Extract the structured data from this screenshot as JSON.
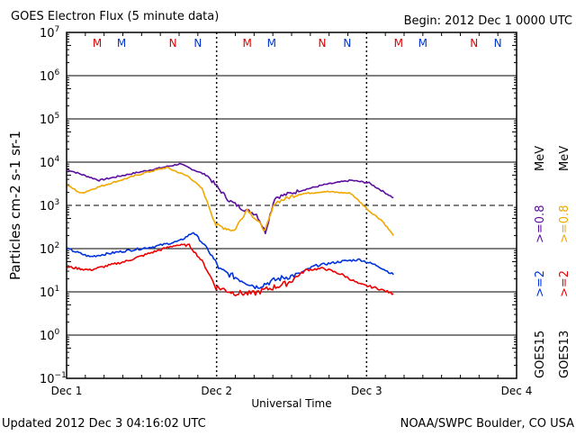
{
  "header": {
    "title": "GOES Electron Flux (5 minute data)",
    "begin": "Begin: 2012 Dec 1 0000 UTC"
  },
  "footer": {
    "updated": "Updated 2012 Dec  3 04:16:02 UTC",
    "credit": "NOAA/SWPC Boulder, CO USA"
  },
  "colors": {
    "goes15_08": "#5b0f9e",
    "goes13_08": "#f0a800",
    "goes15_2": "#0033dd",
    "goes13_2": "#ee0000",
    "marker_red": "#dd0000",
    "marker_blue": "#0033cc"
  },
  "legend": {
    "unit": "MeV",
    "goes15_08": ">=0.8",
    "goes13_08": ">=0.8",
    "goes15_2": ">=2",
    "goes13_2": ">=2",
    "goes15": "GOES15",
    "goes13": "GOES13"
  },
  "chart_data": {
    "type": "line",
    "title": "GOES Electron Flux (5 minute data)",
    "xlabel": "Universal Time",
    "ylabel": "Particles cm-2 s-1 sr-1",
    "x_unit": "hours since 2012 Dec 1 0000 UTC",
    "xlim": [
      0,
      72
    ],
    "ylim": [
      0.1,
      10000000
    ],
    "yscale": "log",
    "x_ticks": [
      {
        "v": 0,
        "label": "Dec 1"
      },
      {
        "v": 24,
        "label": "Dec 2"
      },
      {
        "v": 48,
        "label": "Dec 3"
      },
      {
        "v": 72,
        "label": "Dec 4"
      }
    ],
    "y_ticks": [
      {
        "exp": 7,
        "label": "10",
        "sup": "7"
      },
      {
        "exp": 6,
        "label": "10",
        "sup": "6"
      },
      {
        "exp": 5,
        "label": "10",
        "sup": "5"
      },
      {
        "exp": 4,
        "label": "10",
        "sup": "4"
      },
      {
        "exp": 3,
        "label": "10",
        "sup": "3"
      },
      {
        "exp": 2,
        "label": "10",
        "sup": "2"
      },
      {
        "exp": 1,
        "label": "10",
        "sup": "1"
      },
      {
        "exp": 0,
        "label": "10",
        "sup": "0"
      },
      {
        "exp": -1,
        "label": "10",
        "sup": "−1"
      }
    ],
    "threshold": 1000,
    "markers": [
      {
        "h": 4.9,
        "label": "M",
        "color": "red"
      },
      {
        "h": 8.8,
        "label": "M",
        "color": "blue"
      },
      {
        "h": 17.0,
        "label": "N",
        "color": "red"
      },
      {
        "h": 21.0,
        "label": "N",
        "color": "blue"
      },
      {
        "h": 28.9,
        "label": "M",
        "color": "red"
      },
      {
        "h": 32.8,
        "label": "M",
        "color": "blue"
      },
      {
        "h": 40.9,
        "label": "N",
        "color": "red"
      },
      {
        "h": 44.9,
        "label": "N",
        "color": "blue"
      },
      {
        "h": 53.1,
        "label": "M",
        "color": "red"
      },
      {
        "h": 57.0,
        "label": "M",
        "color": "blue"
      },
      {
        "h": 65.2,
        "label": "N",
        "color": "red"
      },
      {
        "h": 69.0,
        "label": "N",
        "color": "blue"
      }
    ],
    "series": [
      {
        "name": "GOES15 >=0.8 MeV",
        "color": "#5b0f9e",
        "x": [
          0,
          5.2,
          10.9,
          15.3,
          18.1,
          22.5,
          26,
          28.2,
          30.4,
          31.8,
          33.3,
          36.9,
          41.2,
          45.5,
          48.4,
          52.3
        ],
        "y": [
          6800,
          3800,
          5600,
          7500,
          9100,
          4900,
          1300,
          830,
          620,
          240,
          1500,
          2100,
          3000,
          3800,
          3300,
          1500
        ]
      },
      {
        "name": "GOES13 >=0.8 MeV",
        "color": "#f0a800",
        "x": [
          0,
          2.3,
          5.2,
          12.4,
          16,
          19.6,
          21.7,
          23.9,
          26.8,
          28.9,
          31.8,
          33.3,
          36.9,
          41.2,
          45.5,
          48.4,
          50.5,
          52.3
        ],
        "y": [
          3000,
          1900,
          2700,
          5600,
          7500,
          4600,
          2400,
          350,
          260,
          830,
          260,
          1150,
          1800,
          2100,
          1900,
          750,
          440,
          200
        ]
      },
      {
        "name": "GOES15 >=2 MeV",
        "color": "#0033dd",
        "x": [
          0,
          3.7,
          8.1,
          13.8,
          18.1,
          20.3,
          22.5,
          24.6,
          27.5,
          30.4,
          33.9,
          36.9,
          39.7,
          44.1,
          46.9,
          49.8,
          52.3
        ],
        "y": [
          100,
          65,
          83,
          110,
          150,
          240,
          100,
          32,
          20,
          13,
          20,
          25,
          40,
          51,
          56,
          40,
          25
        ]
      },
      {
        "name": "GOES13 >=2 MeV",
        "color": "#ee0000",
        "x": [
          0,
          3.7,
          9.5,
          13.8,
          17.4,
          19.6,
          21.7,
          23.9,
          26.8,
          29.7,
          32.5,
          35.4,
          38.3,
          41.2,
          44.1,
          46.9,
          49.8,
          52.3
        ],
        "y": [
          38,
          32,
          51,
          83,
          120,
          120,
          51,
          13,
          9.5,
          9,
          12,
          16,
          32,
          35,
          25,
          15,
          12,
          9
        ]
      }
    ]
  }
}
